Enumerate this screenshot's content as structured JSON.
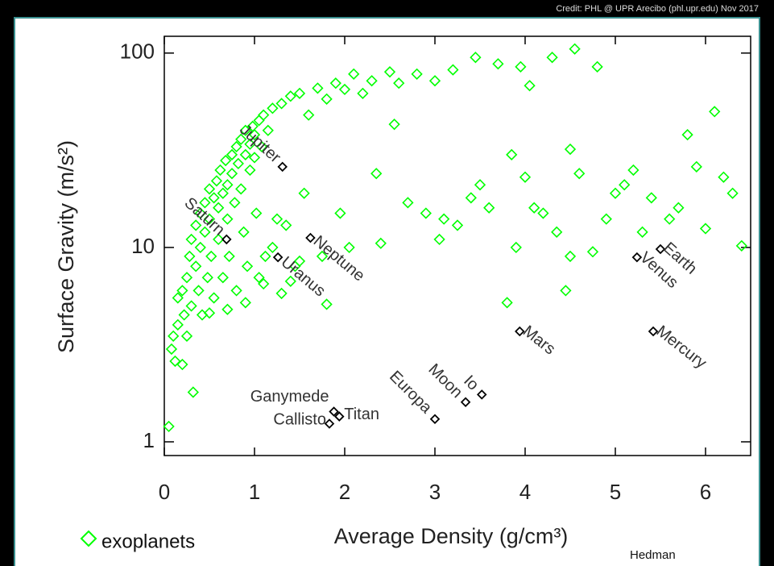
{
  "chart_data": {
    "type": "scatter",
    "credit": "Credit: PHL @ UPR Arecibo (phl.upr.edu) Nov 2017",
    "x_label": "Average Density (g/cm³)",
    "y_label": "Surface Gravity (m/s²)",
    "author": "Hedman",
    "xlim": [
      0,
      6.5
    ],
    "ylim": [
      0.85,
      122
    ],
    "ylog": true,
    "xticks": [
      0,
      1,
      2,
      3,
      4,
      5,
      6
    ],
    "yticks": [
      1,
      10,
      100
    ],
    "series": [
      {
        "name": "exoplanets",
        "color": "#00ff00",
        "x": [
          0.05,
          0.08,
          0.1,
          0.12,
          0.15,
          0.15,
          0.2,
          0.2,
          0.22,
          0.25,
          0.25,
          0.28,
          0.3,
          0.3,
          0.32,
          0.35,
          0.35,
          0.38,
          0.4,
          0.4,
          0.42,
          0.45,
          0.45,
          0.48,
          0.5,
          0.5,
          0.52,
          0.55,
          0.55,
          0.58,
          0.6,
          0.6,
          0.62,
          0.65,
          0.65,
          0.68,
          0.7,
          0.7,
          0.72,
          0.75,
          0.75,
          0.78,
          0.8,
          0.8,
          0.82,
          0.85,
          0.85,
          0.88,
          0.9,
          0.9,
          0.92,
          0.95,
          0.95,
          0.98,
          1.0,
          1.0,
          1.02,
          1.05,
          1.05,
          1.08,
          1.1,
          1.12,
          1.15,
          1.2,
          1.2,
          1.25,
          1.3,
          1.35,
          1.4,
          1.45,
          1.5,
          1.55,
          1.6,
          1.7,
          1.75,
          1.8,
          1.9,
          1.95,
          2.0,
          2.05,
          2.1,
          2.2,
          2.3,
          2.35,
          2.4,
          2.5,
          2.55,
          2.6,
          2.7,
          2.8,
          2.9,
          3.0,
          3.05,
          3.1,
          3.2,
          3.25,
          3.4,
          3.45,
          3.5,
          3.6,
          3.7,
          3.8,
          3.85,
          3.9,
          3.95,
          4.0,
          4.05,
          4.1,
          4.2,
          4.3,
          4.35,
          4.45,
          4.5,
          4.5,
          4.55,
          4.6,
          4.75,
          4.8,
          4.9,
          5.0,
          5.1,
          5.2,
          5.3,
          5.4,
          5.6,
          5.7,
          5.8,
          5.9,
          6.0,
          6.1,
          6.2,
          6.3,
          6.4,
          0.5,
          0.7,
          0.9,
          1.1,
          1.3,
          1.4,
          1.5,
          1.8
        ],
        "values": [
          1.2,
          3,
          3.5,
          2.6,
          4,
          5.5,
          2.5,
          6,
          4.5,
          7,
          3.5,
          9,
          5,
          11,
          1.8,
          8,
          13,
          6,
          15,
          10,
          4.5,
          12,
          17,
          7,
          20,
          14,
          9,
          18,
          5.5,
          22,
          16,
          11,
          25,
          19,
          7,
          28,
          21,
          14,
          9,
          30,
          24,
          17,
          33,
          6,
          27,
          20,
          36,
          12,
          30,
          40,
          8,
          25,
          34,
          42,
          38,
          29,
          15,
          45,
          7,
          33,
          48,
          9,
          40,
          10,
          52,
          14,
          55,
          13,
          60,
          8,
          62,
          19,
          48,
          66,
          9,
          58,
          70,
          15,
          65,
          10,
          78,
          62,
          72,
          24,
          10.5,
          80,
          43,
          70,
          17,
          78,
          15,
          72,
          11,
          14,
          82,
          13,
          18,
          95,
          21,
          16,
          88,
          5.2,
          30,
          10,
          85,
          23,
          68,
          16,
          15,
          95,
          12,
          6,
          32,
          9,
          105,
          24,
          9.5,
          85,
          14,
          19,
          21,
          25,
          12,
          18,
          14,
          16,
          38,
          26,
          12.5,
          50,
          23,
          19,
          10.2,
          4.6,
          4.8,
          5.2,
          6.5,
          5.8,
          6.7,
          8.5,
          5.1
        ]
      }
    ],
    "labeled_points": {
      "color": "#000000",
      "labels": [
        "Jupiter",
        "Saturn",
        "Neptune",
        "Uranus",
        "Earth",
        "Venus",
        "Mars",
        "Mercury",
        "Io",
        "Moon",
        "Europa",
        "Titan",
        "Ganymede",
        "Callisto"
      ],
      "x": [
        1.31,
        0.69,
        1.62,
        1.26,
        5.5,
        5.24,
        3.94,
        5.42,
        3.52,
        3.34,
        3.0,
        1.94,
        1.88,
        1.83
      ],
      "values": [
        26,
        11,
        11.2,
        8.9,
        9.8,
        8.9,
        3.7,
        3.7,
        1.75,
        1.6,
        1.31,
        1.35,
        1.43,
        1.24
      ]
    }
  }
}
